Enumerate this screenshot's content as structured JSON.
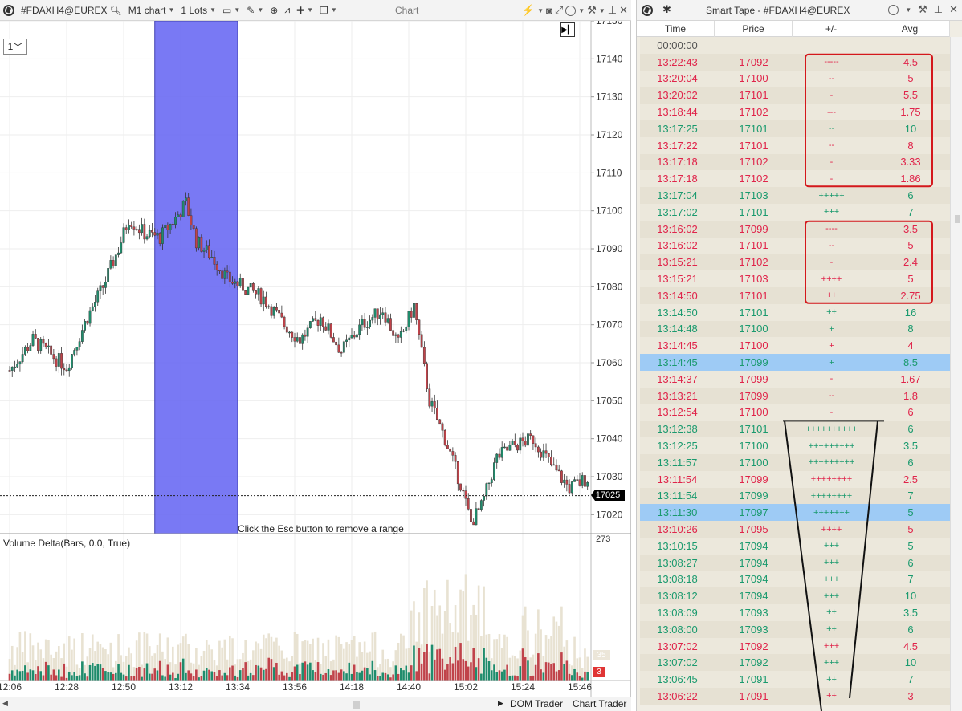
{
  "chart_window": {
    "toolbar": {
      "symbol": "#FDAXH4@EUREX",
      "timeframe": "M1 chart",
      "lots": "1 Lots",
      "title": "Chart"
    },
    "interval_select": "1",
    "esc_hint": "Click the Esc button to remove a range",
    "indicator_label": "Volume Delta(Bars, 0.0, True)",
    "current_price": "17025",
    "volume_axis_max": "273",
    "volume_tags": [
      "35",
      "3"
    ],
    "bottom_bar": {
      "dom_trader": "DOM Trader",
      "chart_trader": "Chart Trader"
    },
    "icons": [
      "logo-icon",
      "search-icon",
      "dropdown-caret-icon",
      "pencil-icon",
      "zoom-icon",
      "indicator-icon",
      "crosshair-icon",
      "window-icon",
      "magnet-icon",
      "camera-icon",
      "fullscreen-icon",
      "circle-icon",
      "tools-icon",
      "pin-icon",
      "close-icon",
      "play-icon"
    ]
  },
  "chart_data": {
    "type": "candlestick",
    "price_axis_labels": [
      "17150",
      "17140",
      "17130",
      "17120",
      "17110",
      "17100",
      "17090",
      "17080",
      "17070",
      "17060",
      "17050",
      "17040",
      "17030",
      "17020"
    ],
    "ylim": [
      17015,
      17150
    ],
    "time_axis_labels": [
      "12:06",
      "12:28",
      "12:50",
      "13:12",
      "13:34",
      "13:56",
      "14:18",
      "14:40",
      "15:02",
      "15:24",
      "15:46"
    ],
    "selected_range": [
      "13:02",
      "13:34"
    ],
    "current_price": 17025,
    "price_path": [
      {
        "t": "12:06",
        "p": 17058
      },
      {
        "t": "12:15",
        "p": 17066
      },
      {
        "t": "12:22",
        "p": 17062
      },
      {
        "t": "12:28",
        "p": 17059
      },
      {
        "t": "12:36",
        "p": 17072
      },
      {
        "t": "12:42",
        "p": 17080
      },
      {
        "t": "12:48",
        "p": 17090
      },
      {
        "t": "12:52",
        "p": 17098
      },
      {
        "t": "12:58",
        "p": 17094
      },
      {
        "t": "13:04",
        "p": 17093
      },
      {
        "t": "13:10",
        "p": 17098
      },
      {
        "t": "13:14",
        "p": 17102
      },
      {
        "t": "13:18",
        "p": 17092
      },
      {
        "t": "13:24",
        "p": 17088
      },
      {
        "t": "13:30",
        "p": 17082
      },
      {
        "t": "13:36",
        "p": 17080
      },
      {
        "t": "13:44",
        "p": 17077
      },
      {
        "t": "13:52",
        "p": 17070
      },
      {
        "t": "13:58",
        "p": 17066
      },
      {
        "t": "14:06",
        "p": 17072
      },
      {
        "t": "14:14",
        "p": 17063
      },
      {
        "t": "14:22",
        "p": 17070
      },
      {
        "t": "14:30",
        "p": 17074
      },
      {
        "t": "14:36",
        "p": 17065
      },
      {
        "t": "14:42",
        "p": 17075
      },
      {
        "t": "14:48",
        "p": 17050
      },
      {
        "t": "14:54",
        "p": 17040
      },
      {
        "t": "15:00",
        "p": 17028
      },
      {
        "t": "15:04",
        "p": 17018
      },
      {
        "t": "15:08",
        "p": 17022
      },
      {
        "t": "15:14",
        "p": 17035
      },
      {
        "t": "15:20",
        "p": 17038
      },
      {
        "t": "15:28",
        "p": 17040
      },
      {
        "t": "15:36",
        "p": 17032
      },
      {
        "t": "15:42",
        "p": 17027
      },
      {
        "t": "15:50",
        "p": 17030
      }
    ]
  },
  "smart_tape": {
    "title": "Smart Tape - #FDAXH4@EUREX",
    "columns": [
      "Time",
      "Price",
      "+/-",
      "Avg"
    ],
    "header_row": "00:00:00",
    "rows": [
      {
        "time": "13:22:43",
        "price": "17092",
        "pm": "-----",
        "avg": "4.5",
        "side": "sell"
      },
      {
        "time": "13:20:04",
        "price": "17100",
        "pm": "--",
        "avg": "5",
        "side": "sell"
      },
      {
        "time": "13:20:02",
        "price": "17101",
        "pm": "-",
        "avg": "5.5",
        "side": "sell"
      },
      {
        "time": "13:18:44",
        "price": "17102",
        "pm": "---",
        "avg": "1.75",
        "side": "sell"
      },
      {
        "time": "13:17:25",
        "price": "17101",
        "pm": "--",
        "avg": "10",
        "side": "buy"
      },
      {
        "time": "13:17:22",
        "price": "17101",
        "pm": "--",
        "avg": "8",
        "side": "sell"
      },
      {
        "time": "13:17:18",
        "price": "17102",
        "pm": "-",
        "avg": "3.33",
        "side": "sell"
      },
      {
        "time": "13:17:18",
        "price": "17102",
        "pm": "-",
        "avg": "1.86",
        "side": "sell"
      },
      {
        "time": "13:17:04",
        "price": "17103",
        "pm": "+++++",
        "avg": "6",
        "side": "buy"
      },
      {
        "time": "13:17:02",
        "price": "17101",
        "pm": "+++",
        "avg": "7",
        "side": "buy"
      },
      {
        "time": "13:16:02",
        "price": "17099",
        "pm": "----",
        "avg": "3.5",
        "side": "sell"
      },
      {
        "time": "13:16:02",
        "price": "17101",
        "pm": "--",
        "avg": "5",
        "side": "sell"
      },
      {
        "time": "13:15:21",
        "price": "17102",
        "pm": "-",
        "avg": "2.4",
        "side": "sell"
      },
      {
        "time": "13:15:21",
        "price": "17103",
        "pm": "++++",
        "avg": "5",
        "side": "sell"
      },
      {
        "time": "13:14:50",
        "price": "17101",
        "pm": "++",
        "avg": "2.75",
        "side": "sell"
      },
      {
        "time": "13:14:50",
        "price": "17101",
        "pm": "++",
        "avg": "16",
        "side": "buy"
      },
      {
        "time": "13:14:48",
        "price": "17100",
        "pm": "+",
        "avg": "8",
        "side": "buy"
      },
      {
        "time": "13:14:45",
        "price": "17100",
        "pm": "+",
        "avg": "4",
        "side": "sell"
      },
      {
        "time": "13:14:45",
        "price": "17099",
        "pm": "+",
        "avg": "8.5",
        "side": "buy",
        "highlight": true
      },
      {
        "time": "13:14:37",
        "price": "17099",
        "pm": "-",
        "avg": "1.67",
        "side": "sell"
      },
      {
        "time": "13:13:21",
        "price": "17099",
        "pm": "--",
        "avg": "1.8",
        "side": "sell"
      },
      {
        "time": "13:12:54",
        "price": "17100",
        "pm": "-",
        "avg": "6",
        "side": "sell"
      },
      {
        "time": "13:12:38",
        "price": "17101",
        "pm": "++++++++++",
        "avg": "6",
        "side": "buy"
      },
      {
        "time": "13:12:25",
        "price": "17100",
        "pm": "+++++++++",
        "avg": "3.5",
        "side": "buy"
      },
      {
        "time": "13:11:57",
        "price": "17100",
        "pm": "+++++++++",
        "avg": "6",
        "side": "buy"
      },
      {
        "time": "13:11:54",
        "price": "17099",
        "pm": "++++++++",
        "avg": "2.5",
        "side": "sell"
      },
      {
        "time": "13:11:54",
        "price": "17099",
        "pm": "++++++++",
        "avg": "7",
        "side": "buy"
      },
      {
        "time": "13:11:30",
        "price": "17097",
        "pm": "+++++++",
        "avg": "5",
        "side": "buy",
        "highlight": true
      },
      {
        "time": "13:10:26",
        "price": "17095",
        "pm": "++++",
        "avg": "5",
        "side": "sell"
      },
      {
        "time": "13:10:15",
        "price": "17094",
        "pm": "+++",
        "avg": "5",
        "side": "buy"
      },
      {
        "time": "13:08:27",
        "price": "17094",
        "pm": "+++",
        "avg": "6",
        "side": "buy"
      },
      {
        "time": "13:08:18",
        "price": "17094",
        "pm": "+++",
        "avg": "7",
        "side": "buy"
      },
      {
        "time": "13:08:12",
        "price": "17094",
        "pm": "+++",
        "avg": "10",
        "side": "buy"
      },
      {
        "time": "13:08:09",
        "price": "17093",
        "pm": "++",
        "avg": "3.5",
        "side": "buy"
      },
      {
        "time": "13:08:00",
        "price": "17093",
        "pm": "++",
        "avg": "6",
        "side": "buy"
      },
      {
        "time": "13:07:02",
        "price": "17092",
        "pm": "+++",
        "avg": "4.5",
        "side": "sell"
      },
      {
        "time": "13:07:02",
        "price": "17092",
        "pm": "+++",
        "avg": "10",
        "side": "buy"
      },
      {
        "time": "13:06:45",
        "price": "17091",
        "pm": "++",
        "avg": "7",
        "side": "buy"
      },
      {
        "time": "13:06:22",
        "price": "17091",
        "pm": "++",
        "avg": "3",
        "side": "sell"
      }
    ]
  },
  "colors": {
    "up_candle": "#1f8c6c",
    "down_candle": "#c0434a",
    "selection_range": "#6666f2",
    "buy_text": "#1a9a6e",
    "sell_text": "#e0244a",
    "highlight_row": "#9ecbf5",
    "annotation_box": "#d4181c",
    "volume_background": "#e8e2d2"
  }
}
